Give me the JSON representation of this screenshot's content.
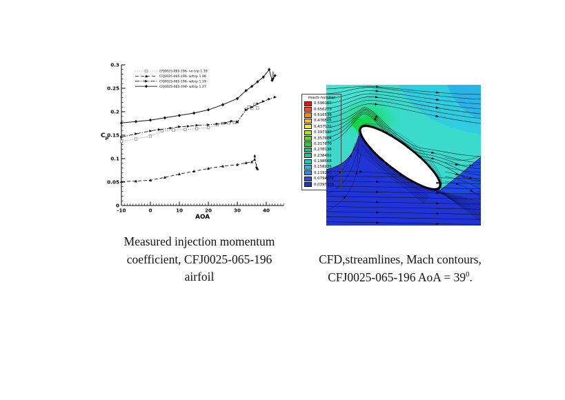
{
  "captions": {
    "left_lines": [
      "Measured injection momentum",
      "coefficient, CFJ0025-065-196",
      "airfoil"
    ],
    "right_line1": "CFD,streamlines, Mach contours,",
    "right_line2_pre": "CFJ0025-065-196 AoA = 39",
    "right_line2_sup": "0",
    "right_line2_post": "."
  },
  "chart_data": {
    "type": "line",
    "title": "",
    "xlabel": "AOA",
    "ylabel": "Cμ",
    "xlim": [
      -10,
      46
    ],
    "ylim": [
      0,
      0.3
    ],
    "xticks": [
      -10,
      0,
      10,
      20,
      30,
      40
    ],
    "yticks": [
      0,
      0.05,
      0.1,
      0.15,
      0.2,
      0.25,
      0.3
    ],
    "grid": false,
    "legend_position": "top-left-inside",
    "series": [
      {
        "name": "CFJ0025-065-196- no trip 1.19",
        "style": "dotted",
        "marker": "open-square",
        "color": "#8a8a8a",
        "x": [
          -10,
          -5,
          0,
          4,
          8,
          12,
          16,
          20,
          23,
          25,
          27,
          29,
          30,
          33,
          34,
          35,
          36,
          37
        ],
        "y": [
          0.137,
          0.142,
          0.148,
          0.159,
          0.161,
          0.162,
          0.164,
          0.166,
          0.172,
          0.175,
          0.176,
          0.177,
          0.178,
          0.205,
          0.21,
          0.207,
          0.215,
          0.208
        ]
      },
      {
        "name": "CFJ0025-065-196- w/trip 1.06",
        "style": "dashed",
        "marker": "triangle",
        "color": "#111111",
        "x": [
          -10,
          -5,
          0,
          5,
          10,
          15,
          20,
          25,
          30,
          33,
          35,
          36,
          37
        ],
        "y": [
          0.051,
          0.052,
          0.054,
          0.06,
          0.067,
          0.073,
          0.079,
          0.084,
          0.087,
          0.091,
          0.093,
          0.098,
          0.078
        ]
      },
      {
        "name": "CFJ0025-065-196- w/trip 1.19",
        "style": "dashdot",
        "marker": "triangle-right",
        "color": "#111111",
        "x": [
          -10,
          -5,
          0,
          3,
          7,
          10,
          13,
          16,
          20,
          23,
          26,
          28,
          30,
          33,
          35,
          37,
          39,
          41,
          43
        ],
        "y": [
          0.146,
          0.153,
          0.159,
          0.162,
          0.165,
          0.168,
          0.169,
          0.171,
          0.172,
          0.174,
          0.176,
          0.18,
          0.178,
          0.204,
          0.21,
          0.217,
          0.222,
          0.227,
          0.231
        ]
      },
      {
        "name": "CFJ0025-065-196- w/trip 1.27",
        "style": "solid",
        "marker": "diamond",
        "color": "#111111",
        "x": [
          -10,
          -5,
          0,
          5,
          10,
          15,
          20,
          25,
          30,
          33,
          35,
          37,
          39,
          41,
          42,
          43
        ],
        "y": [
          0.176,
          0.179,
          0.182,
          0.187,
          0.192,
          0.197,
          0.204,
          0.215,
          0.228,
          0.245,
          0.254,
          0.264,
          0.274,
          0.29,
          0.267,
          0.277
        ]
      }
    ],
    "annotations": [
      {
        "x": 36.0,
        "y1": 0.0995,
        "y2": 0.1055
      },
      {
        "x": 36.6,
        "y1": 0.0885,
        "y2": 0.0805
      },
      {
        "x": 42.35,
        "y1": 0.286,
        "y2": 0.27
      }
    ]
  },
  "cfd": {
    "legend_title": "mach-number",
    "levels": [
      {
        "value": "0.596007",
        "color": "#e01815"
      },
      {
        "value": "0.556273",
        "color": "#f2511c"
      },
      {
        "value": "0.516539",
        "color": "#f8891c"
      },
      {
        "value": "0.476805",
        "color": "#fcc01d"
      },
      {
        "value": "0.437071",
        "color": "#f3ec18"
      },
      {
        "value": "0.397337",
        "color": "#b2e31c"
      },
      {
        "value": "0.357604",
        "color": "#6cd31e"
      },
      {
        "value": "0.317870",
        "color": "#2fc93c"
      },
      {
        "value": "0.278136",
        "color": "#12c86c"
      },
      {
        "value": "0.238402",
        "color": "#0ecb9c"
      },
      {
        "value": "0.198668",
        "color": "#17ccc6"
      },
      {
        "value": "0.158935",
        "color": "#2db9de"
      },
      {
        "value": "0.119201",
        "color": "#2a8fe8"
      },
      {
        "value": "0.0794672",
        "color": "#2756e6"
      },
      {
        "value": "0.0397336",
        "color": "#2233cc"
      }
    ],
    "field_colors": {
      "cyan_base": "#3bdacd",
      "cyan_step1": "#30ccdf",
      "cyan_step2": "#29b4e8",
      "green_peak": "#12d448",
      "blue_bottom": "#2134d6",
      "blue_pocket": "#1c4ae4",
      "airfoil": "#ffffff"
    }
  }
}
